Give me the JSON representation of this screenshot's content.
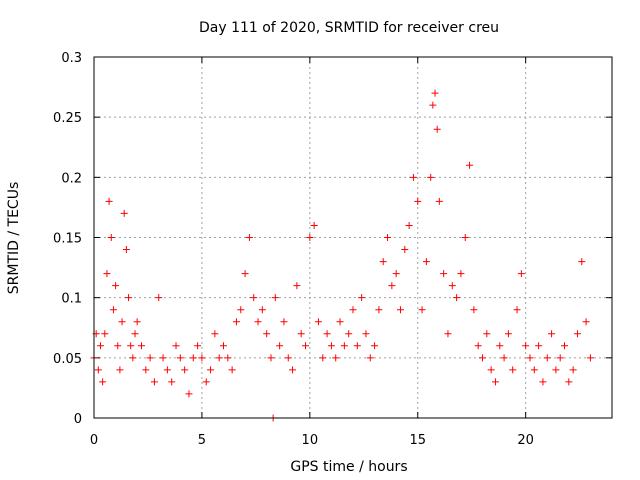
{
  "chart_data": {
    "type": "scatter",
    "title": "Day 111 of 2020, SRMTID for receiver creu",
    "xlabel": "GPS time / hours",
    "ylabel": "SRMTID / TECUs",
    "xlim": [
      0,
      24
    ],
    "ylim": [
      0,
      0.3
    ],
    "x_ticks": [
      0,
      5,
      10,
      15,
      20
    ],
    "x_tick_labels": [
      "0",
      "5",
      "10",
      "15",
      "20"
    ],
    "y_ticks": [
      0,
      0.05,
      0.1,
      0.15,
      0.2,
      0.25,
      0.3
    ],
    "y_tick_labels": [
      "0",
      "0.05",
      "0.1",
      "0.15",
      "0.2",
      "0.25",
      "0.3"
    ],
    "grid": true,
    "marker": "plus",
    "color": "#ff0000",
    "series": [
      {
        "name": "SRMTID",
        "x": [
          0.0,
          0.1,
          0.2,
          0.3,
          0.4,
          0.5,
          0.6,
          0.7,
          0.8,
          0.9,
          1.0,
          1.1,
          1.2,
          1.3,
          1.4,
          1.5,
          1.6,
          1.7,
          1.8,
          1.9,
          2.0,
          2.2,
          2.4,
          2.6,
          2.8,
          3.0,
          3.2,
          3.4,
          3.6,
          3.8,
          4.0,
          4.2,
          4.4,
          4.6,
          4.8,
          5.0,
          5.2,
          5.4,
          5.6,
          5.8,
          6.0,
          6.2,
          6.4,
          6.6,
          6.8,
          7.0,
          7.2,
          7.4,
          7.6,
          7.8,
          8.0,
          8.2,
          8.4,
          8.6,
          8.8,
          9.0,
          9.2,
          9.4,
          9.6,
          9.8,
          10.0,
          10.2,
          10.4,
          10.6,
          10.8,
          11.0,
          11.2,
          11.4,
          11.6,
          11.8,
          12.0,
          12.2,
          12.4,
          12.6,
          12.8,
          13.0,
          13.2,
          13.4,
          13.6,
          13.8,
          14.0,
          14.2,
          14.4,
          14.6,
          14.8,
          15.0,
          15.2,
          15.4,
          15.6,
          15.7,
          15.8,
          15.9,
          16.0,
          16.2,
          16.4,
          16.6,
          16.8,
          17.0,
          17.2,
          17.4,
          17.6,
          17.8,
          18.0,
          18.2,
          18.4,
          18.6,
          18.8,
          19.0,
          19.2,
          19.4,
          19.6,
          19.8,
          20.0,
          20.2,
          20.4,
          20.6,
          20.8,
          21.0,
          21.2,
          21.4,
          21.6,
          21.8,
          22.0,
          22.2,
          22.4,
          22.6,
          22.8,
          23.0,
          8.3
        ],
        "y": [
          0.05,
          0.07,
          0.04,
          0.06,
          0.03,
          0.07,
          0.12,
          0.18,
          0.15,
          0.09,
          0.11,
          0.06,
          0.04,
          0.08,
          0.17,
          0.14,
          0.1,
          0.06,
          0.05,
          0.07,
          0.08,
          0.06,
          0.04,
          0.05,
          0.03,
          0.1,
          0.05,
          0.04,
          0.03,
          0.06,
          0.05,
          0.04,
          0.02,
          0.05,
          0.06,
          0.05,
          0.03,
          0.04,
          0.07,
          0.05,
          0.06,
          0.05,
          0.04,
          0.08,
          0.09,
          0.12,
          0.15,
          0.1,
          0.08,
          0.09,
          0.07,
          0.05,
          0.1,
          0.06,
          0.08,
          0.05,
          0.04,
          0.11,
          0.07,
          0.06,
          0.15,
          0.16,
          0.08,
          0.05,
          0.07,
          0.06,
          0.05,
          0.08,
          0.06,
          0.07,
          0.09,
          0.06,
          0.1,
          0.07,
          0.05,
          0.06,
          0.09,
          0.13,
          0.15,
          0.11,
          0.12,
          0.09,
          0.14,
          0.16,
          0.2,
          0.18,
          0.09,
          0.13,
          0.2,
          0.26,
          0.27,
          0.24,
          0.18,
          0.12,
          0.07,
          0.11,
          0.1,
          0.12,
          0.15,
          0.21,
          0.09,
          0.06,
          0.05,
          0.07,
          0.04,
          0.03,
          0.06,
          0.05,
          0.07,
          0.04,
          0.09,
          0.12,
          0.06,
          0.05,
          0.04,
          0.06,
          0.03,
          0.05,
          0.07,
          0.04,
          0.05,
          0.06,
          0.03,
          0.04,
          0.07,
          0.13,
          0.08,
          0.05,
          0.0
        ]
      }
    ]
  }
}
